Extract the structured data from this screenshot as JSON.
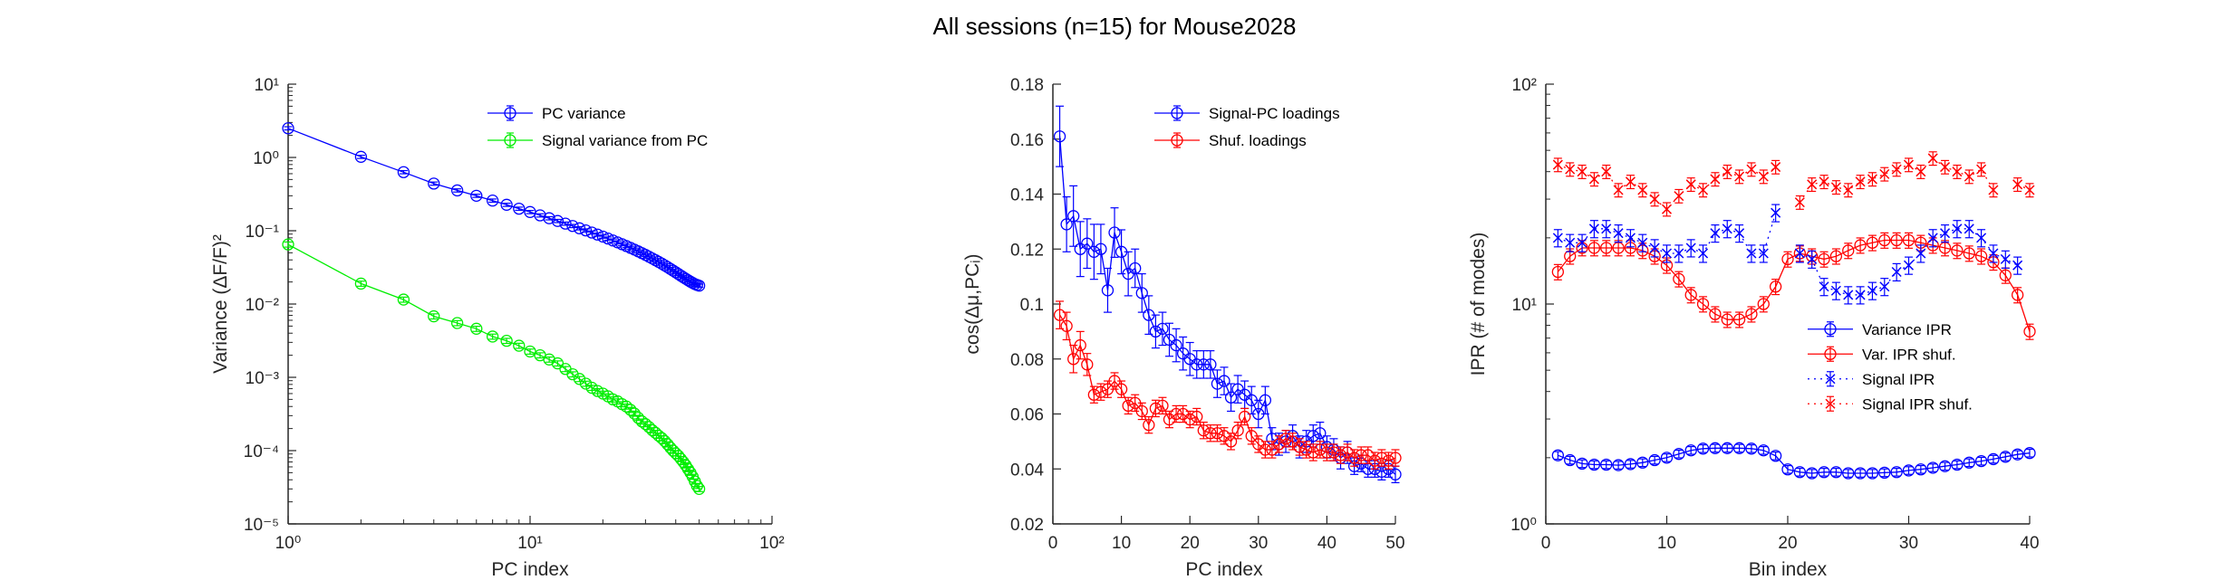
{
  "figure": {
    "title": "All sessions (n=15) for Mouse2028"
  },
  "chart_data": [
    {
      "type": "line",
      "xscale": "log",
      "yscale": "log",
      "xlim": [
        1,
        100
      ],
      "ylim": [
        1e-05,
        10
      ],
      "xlabel": "PC index",
      "ylabel": "Variance (ΔF/F)²",
      "xticks": [
        "10⁰",
        "10¹",
        "10²"
      ],
      "yticks": [
        "10⁻⁵",
        "10⁻⁴",
        "10⁻³",
        "10⁻²",
        "10⁻¹",
        "10⁰",
        "10¹"
      ],
      "legend_position": "top-right",
      "series": [
        {
          "name": "PC variance",
          "color": "#0000ff",
          "marker": "circle",
          "line": "solid",
          "x": [
            1,
            2,
            3,
            4,
            5,
            6,
            7,
            8,
            9,
            10,
            11,
            12,
            13,
            14,
            15,
            16,
            17,
            18,
            19,
            20,
            21,
            22,
            23,
            24,
            25,
            26,
            27,
            28,
            29,
            30,
            31,
            32,
            33,
            34,
            35,
            36,
            37,
            38,
            39,
            40,
            41,
            42,
            43,
            44,
            45,
            46,
            47,
            48,
            49,
            50
          ],
          "y": [
            2.5,
            1.02,
            0.63,
            0.44,
            0.355,
            0.3,
            0.258,
            0.226,
            0.2,
            0.18,
            0.162,
            0.148,
            0.136,
            0.125,
            0.116,
            0.108,
            0.101,
            0.0945,
            0.0886,
            0.0832,
            0.0782,
            0.0736,
            0.0694,
            0.0655,
            0.0619,
            0.0585,
            0.0553,
            0.0523,
            0.0495,
            0.0468,
            0.0443,
            0.0419,
            0.0397,
            0.0376,
            0.0356,
            0.0337,
            0.0319,
            0.0302,
            0.0286,
            0.0271,
            0.0257,
            0.0244,
            0.0232,
            0.0221,
            0.0211,
            0.0202,
            0.0194,
            0.0187,
            0.0182,
            0.0178
          ]
        },
        {
          "name": "Signal variance from PC",
          "color": "#00ee00",
          "marker": "circle",
          "line": "solid",
          "x": [
            1,
            2,
            3,
            4,
            5,
            6,
            7,
            8,
            9,
            10,
            11,
            12,
            13,
            14,
            15,
            16,
            17,
            18,
            19,
            20,
            21,
            22,
            23,
            24,
            25,
            26,
            27,
            28,
            29,
            30,
            31,
            32,
            33,
            34,
            35,
            36,
            37,
            38,
            39,
            40,
            41,
            42,
            43,
            44,
            45,
            46,
            47,
            48,
            49,
            50
          ],
          "y": [
            0.065,
            0.019,
            0.0115,
            0.0068,
            0.0055,
            0.0046,
            0.0036,
            0.00315,
            0.0027,
            0.00225,
            0.002,
            0.00175,
            0.00155,
            0.0013,
            0.0011,
            0.00095,
            0.00082,
            0.00072,
            0.00065,
            0.0006,
            0.00055,
            0.0005,
            0.00047,
            0.00043,
            0.0004,
            0.00036,
            0.00032,
            0.00028,
            0.00025,
            0.00023,
            0.00021,
            0.00019,
            0.000175,
            0.00016,
            0.000148,
            0.000135,
            0.000122,
            0.00011,
            0.0001,
            9.2e-05,
            8.5e-05,
            7.7e-05,
            7e-05,
            6.3e-05,
            5.6e-05,
            5e-05,
            4.4e-05,
            3.8e-05,
            3.3e-05,
            3e-05
          ],
          "rel_err": 0.08
        }
      ]
    },
    {
      "type": "line",
      "xlim": [
        0,
        50
      ],
      "ylim": [
        0.02,
        0.18
      ],
      "xlabel": "PC index",
      "ylabel": "cos(Δμ,PCᵢ)",
      "xticks": [
        "0",
        "10",
        "20",
        "30",
        "40",
        "50"
      ],
      "yticks": [
        "0.02",
        "0.04",
        "0.06",
        "0.08",
        "0.1",
        "0.12",
        "0.14",
        "0.16",
        "0.18"
      ],
      "legend_position": "top-right",
      "series": [
        {
          "name": "Signal-PC loadings",
          "color": "#0000ff",
          "marker": "circle",
          "line": "solid",
          "x": [
            1,
            2,
            3,
            4,
            5,
            6,
            7,
            8,
            9,
            10,
            11,
            12,
            13,
            14,
            15,
            16,
            17,
            18,
            19,
            20,
            21,
            22,
            23,
            24,
            25,
            26,
            27,
            28,
            29,
            30,
            31,
            32,
            33,
            34,
            35,
            36,
            37,
            38,
            39,
            40,
            41,
            42,
            43,
            44,
            45,
            46,
            47,
            48,
            49,
            50
          ],
          "y": [
            0.161,
            0.129,
            0.132,
            0.12,
            0.122,
            0.119,
            0.12,
            0.105,
            0.126,
            0.119,
            0.111,
            0.113,
            0.104,
            0.096,
            0.09,
            0.091,
            0.087,
            0.085,
            0.082,
            0.08,
            0.078,
            0.078,
            0.078,
            0.071,
            0.072,
            0.066,
            0.069,
            0.067,
            0.065,
            0.06,
            0.065,
            0.051,
            0.049,
            0.05,
            0.052,
            0.048,
            0.05,
            0.052,
            0.053,
            0.048,
            0.047,
            0.044,
            0.046,
            0.041,
            0.042,
            0.04,
            0.04,
            0.039,
            0.04,
            0.038
          ],
          "err": [
            0.011,
            0.01,
            0.011,
            0.01,
            0.009,
            0.01,
            0.009,
            0.008,
            0.009,
            0.008,
            0.008,
            0.007,
            0.007,
            0.007,
            0.006,
            0.006,
            0.006,
            0.006,
            0.006,
            0.006,
            0.005,
            0.005,
            0.005,
            0.005,
            0.005,
            0.005,
            0.005,
            0.005,
            0.005,
            0.005,
            0.005,
            0.004,
            0.004,
            0.004,
            0.004,
            0.004,
            0.004,
            0.004,
            0.004,
            0.004,
            0.004,
            0.004,
            0.004,
            0.003,
            0.003,
            0.003,
            0.003,
            0.003,
            0.003,
            0.003
          ]
        },
        {
          "name": "Shuf. loadings",
          "color": "#ff0000",
          "marker": "circle",
          "line": "solid",
          "x": [
            1,
            2,
            3,
            4,
            5,
            6,
            7,
            8,
            9,
            10,
            11,
            12,
            13,
            14,
            15,
            16,
            17,
            18,
            19,
            20,
            21,
            22,
            23,
            24,
            25,
            26,
            27,
            28,
            29,
            30,
            31,
            32,
            33,
            34,
            35,
            36,
            37,
            38,
            39,
            40,
            41,
            42,
            43,
            44,
            45,
            46,
            47,
            48,
            49,
            50
          ],
          "y": [
            0.096,
            0.092,
            0.08,
            0.085,
            0.078,
            0.067,
            0.068,
            0.069,
            0.072,
            0.069,
            0.063,
            0.064,
            0.061,
            0.056,
            0.062,
            0.063,
            0.058,
            0.06,
            0.06,
            0.058,
            0.059,
            0.054,
            0.053,
            0.053,
            0.052,
            0.05,
            0.054,
            0.059,
            0.052,
            0.049,
            0.047,
            0.047,
            0.049,
            0.051,
            0.05,
            0.048,
            0.047,
            0.046,
            0.047,
            0.046,
            0.046,
            0.045,
            0.046,
            0.044,
            0.045,
            0.045,
            0.043,
            0.044,
            0.043,
            0.044
          ],
          "err": [
            0.005,
            0.005,
            0.005,
            0.005,
            0.004,
            0.003,
            0.003,
            0.003,
            0.003,
            0.003,
            0.003,
            0.003,
            0.003,
            0.003,
            0.003,
            0.003,
            0.003,
            0.003,
            0.003,
            0.003,
            0.003,
            0.003,
            0.003,
            0.003,
            0.003,
            0.003,
            0.003,
            0.003,
            0.003,
            0.003,
            0.003,
            0.003,
            0.003,
            0.003,
            0.003,
            0.003,
            0.003,
            0.003,
            0.003,
            0.003,
            0.003,
            0.003,
            0.003,
            0.003,
            0.003,
            0.003,
            0.003,
            0.003,
            0.003,
            0.003
          ]
        }
      ]
    },
    {
      "type": "line",
      "yscale": "log",
      "xlim": [
        0,
        40
      ],
      "ylim": [
        1,
        100
      ],
      "xlabel": "Bin index",
      "ylabel": "IPR (# of modes)",
      "xticks": [
        "0",
        "10",
        "20",
        "30",
        "40"
      ],
      "yticks": [
        "10⁰",
        "10¹",
        "10²"
      ],
      "legend_position": "right",
      "series": [
        {
          "name": "Variance IPR",
          "color": "#0000ff",
          "marker": "circle",
          "line": "solid",
          "x": [
            1,
            2,
            3,
            4,
            5,
            6,
            7,
            8,
            9,
            10,
            11,
            12,
            13,
            14,
            15,
            16,
            17,
            18,
            19,
            20,
            21,
            22,
            23,
            24,
            25,
            26,
            27,
            28,
            29,
            30,
            31,
            32,
            33,
            34,
            35,
            36,
            37,
            38,
            39,
            40
          ],
          "y": [
            2.05,
            1.95,
            1.88,
            1.86,
            1.86,
            1.85,
            1.87,
            1.9,
            1.95,
            2.0,
            2.08,
            2.16,
            2.2,
            2.21,
            2.21,
            2.21,
            2.2,
            2.16,
            2.04,
            1.77,
            1.72,
            1.7,
            1.72,
            1.72,
            1.7,
            1.7,
            1.7,
            1.71,
            1.72,
            1.75,
            1.77,
            1.8,
            1.83,
            1.86,
            1.9,
            1.93,
            1.97,
            2.02,
            2.07,
            2.1
          ],
          "rel_err": 0.04
        },
        {
          "name": "Var. IPR shuf.",
          "color": "#ff0000",
          "marker": "circle",
          "line": "solid",
          "x": [
            1,
            2,
            3,
            4,
            5,
            6,
            7,
            8,
            9,
            10,
            11,
            12,
            13,
            14,
            15,
            16,
            17,
            18,
            19,
            20,
            21,
            22,
            23,
            24,
            25,
            26,
            27,
            28,
            29,
            30,
            31,
            32,
            33,
            34,
            35,
            36,
            37,
            38,
            39,
            40
          ],
          "y": [
            14,
            16.5,
            18,
            18,
            18,
            18,
            18,
            17.5,
            16.5,
            15,
            13,
            11,
            10,
            9,
            8.5,
            8.5,
            9,
            10,
            12,
            16,
            17,
            16.5,
            16,
            16.5,
            17.5,
            18.5,
            19,
            19.5,
            19.5,
            19.5,
            19,
            18.5,
            18,
            17.5,
            17,
            16.5,
            15.5,
            13.5,
            11,
            7.5
          ],
          "rel_err": 0.08
        },
        {
          "name": "Signal IPR",
          "color": "#0000ff",
          "marker": "cross",
          "line": "dotted",
          "x": [
            1,
            2,
            3,
            4,
            5,
            6,
            7,
            8,
            9,
            10,
            11,
            12,
            13,
            14,
            15,
            16,
            17,
            18,
            19,
            20,
            21,
            22,
            23,
            24,
            25,
            26,
            27,
            28,
            29,
            30,
            31,
            32,
            33,
            34,
            35,
            36,
            37,
            38,
            39,
            40
          ],
          "y": [
            20,
            19,
            19,
            22,
            22,
            21,
            20,
            19,
            18,
            17,
            17,
            18,
            17,
            21,
            22,
            21,
            17,
            17,
            26,
            null,
            17,
            16,
            12,
            11.5,
            11,
            11,
            11.5,
            12,
            14,
            15,
            17,
            20,
            21,
            22,
            22,
            20,
            17,
            16,
            15,
            null
          ],
          "rel_err": 0.09
        },
        {
          "name": "Signal IPR shuf.",
          "color": "#ff0000",
          "marker": "cross",
          "line": "dotted",
          "x": [
            1,
            2,
            3,
            4,
            5,
            6,
            7,
            8,
            9,
            10,
            11,
            12,
            13,
            14,
            15,
            16,
            17,
            18,
            19,
            20,
            21,
            22,
            23,
            24,
            25,
            26,
            27,
            28,
            29,
            30,
            31,
            32,
            33,
            34,
            35,
            36,
            37,
            38,
            39,
            40
          ],
          "y": [
            43,
            41,
            40,
            37,
            40,
            33,
            36,
            33,
            30,
            27,
            31,
            35,
            33,
            37,
            40,
            38,
            41,
            38,
            42,
            null,
            29,
            35,
            36,
            34,
            33,
            36,
            37,
            39,
            41,
            43,
            40,
            46,
            42,
            40,
            38,
            41,
            33,
            null,
            35,
            33
          ],
          "rel_err": 0.07
        }
      ]
    }
  ]
}
